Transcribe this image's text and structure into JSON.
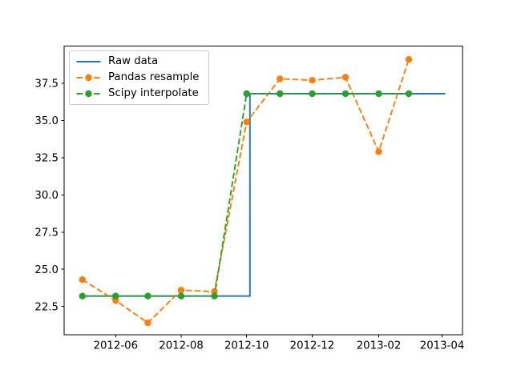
{
  "chart_data": {
    "type": "line",
    "title": "",
    "xlabel": "",
    "ylabel": "",
    "grid": false,
    "legend_position": "upper left",
    "xlim": [
      "2012-04-14",
      "2013-04-20"
    ],
    "ylim": [
      20.6,
      40.0
    ],
    "x_ticks": [
      {
        "date": "2012-06-01",
        "label": "2012-06"
      },
      {
        "date": "2012-08-01",
        "label": "2012-08"
      },
      {
        "date": "2012-10-01",
        "label": "2012-10"
      },
      {
        "date": "2012-12-01",
        "label": "2012-12"
      },
      {
        "date": "2013-02-01",
        "label": "2013-02"
      },
      {
        "date": "2013-04-01",
        "label": "2013-04"
      }
    ],
    "y_ticks": [
      {
        "value": 22.5,
        "label": "22.5"
      },
      {
        "value": 25.0,
        "label": "25.0"
      },
      {
        "value": 27.5,
        "label": "27.5"
      },
      {
        "value": 30.0,
        "label": "30.0"
      },
      {
        "value": 32.5,
        "label": "32.5"
      },
      {
        "value": 35.0,
        "label": "35.0"
      },
      {
        "value": 37.5,
        "label": "37.5"
      }
    ],
    "series": [
      {
        "name": "Raw data",
        "color": "#1f77b4",
        "linestyle": "solid",
        "markers": false,
        "x": [
          "2012-05-01",
          "2012-10-04",
          "2012-10-04",
          "2013-04-04"
        ],
        "y": [
          23.2,
          23.2,
          36.8,
          36.8
        ]
      },
      {
        "name": "Pandas resample",
        "color": "#ff7f0e",
        "linestyle": "dashed",
        "markers": true,
        "x": [
          "2012-05-01",
          "2012-06-01",
          "2012-07-01",
          "2012-08-01",
          "2012-09-01",
          "2012-10-01",
          "2012-11-01",
          "2012-12-01",
          "2013-01-01",
          "2013-02-01",
          "2013-03-01"
        ],
        "y": [
          24.3,
          22.9,
          21.4,
          23.6,
          23.5,
          34.9,
          37.8,
          37.7,
          37.9,
          32.9,
          39.1
        ]
      },
      {
        "name": "Scipy interpolate",
        "color": "#2ca02c",
        "linestyle": "dashed",
        "markers": true,
        "x": [
          "2012-05-01",
          "2012-06-01",
          "2012-07-01",
          "2012-08-01",
          "2012-09-01",
          "2012-10-01",
          "2012-11-01",
          "2012-12-01",
          "2013-01-01",
          "2013-02-01",
          "2013-03-01"
        ],
        "y": [
          23.2,
          23.2,
          23.2,
          23.2,
          23.2,
          36.8,
          36.8,
          36.8,
          36.8,
          36.8,
          36.8
        ]
      }
    ]
  }
}
